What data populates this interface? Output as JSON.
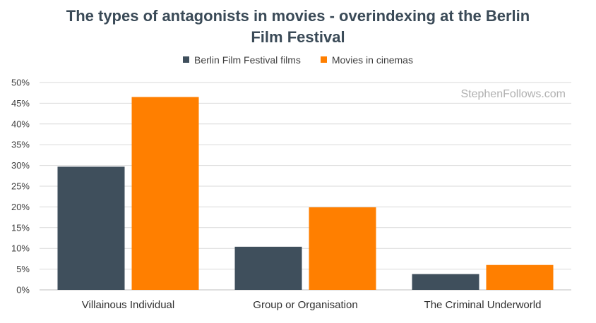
{
  "title_lines": [
    "The types of antagonists in movies - overindexing at the Berlin",
    "Film Festival"
  ],
  "watermark": "StephenFollows.com",
  "colors": {
    "berlin": "#3f4f5c",
    "cinemas": "#ff7f00",
    "grid": "#d9d9d9",
    "axis": "#bfbfbf"
  },
  "chart_data": {
    "type": "bar",
    "title": "The types of antagonists in movies - overindexing at the Berlin Film Festival",
    "xlabel": "",
    "ylabel": "",
    "categories": [
      "Villainous Individual",
      "Group or Organisation",
      "The Criminal Underworld"
    ],
    "series": [
      {
        "name": "Berlin Film Festival films",
        "values": [
          29.7,
          10.4,
          3.8
        ]
      },
      {
        "name": "Movies in cinemas",
        "values": [
          46.5,
          19.9,
          6.0
        ]
      }
    ],
    "ylim": [
      0,
      50
    ],
    "yticks": [
      "0%",
      "5%",
      "10%",
      "15%",
      "20%",
      "25%",
      "30%",
      "35%",
      "40%",
      "45%",
      "50%"
    ],
    "grid": true,
    "legend_position": "top"
  }
}
